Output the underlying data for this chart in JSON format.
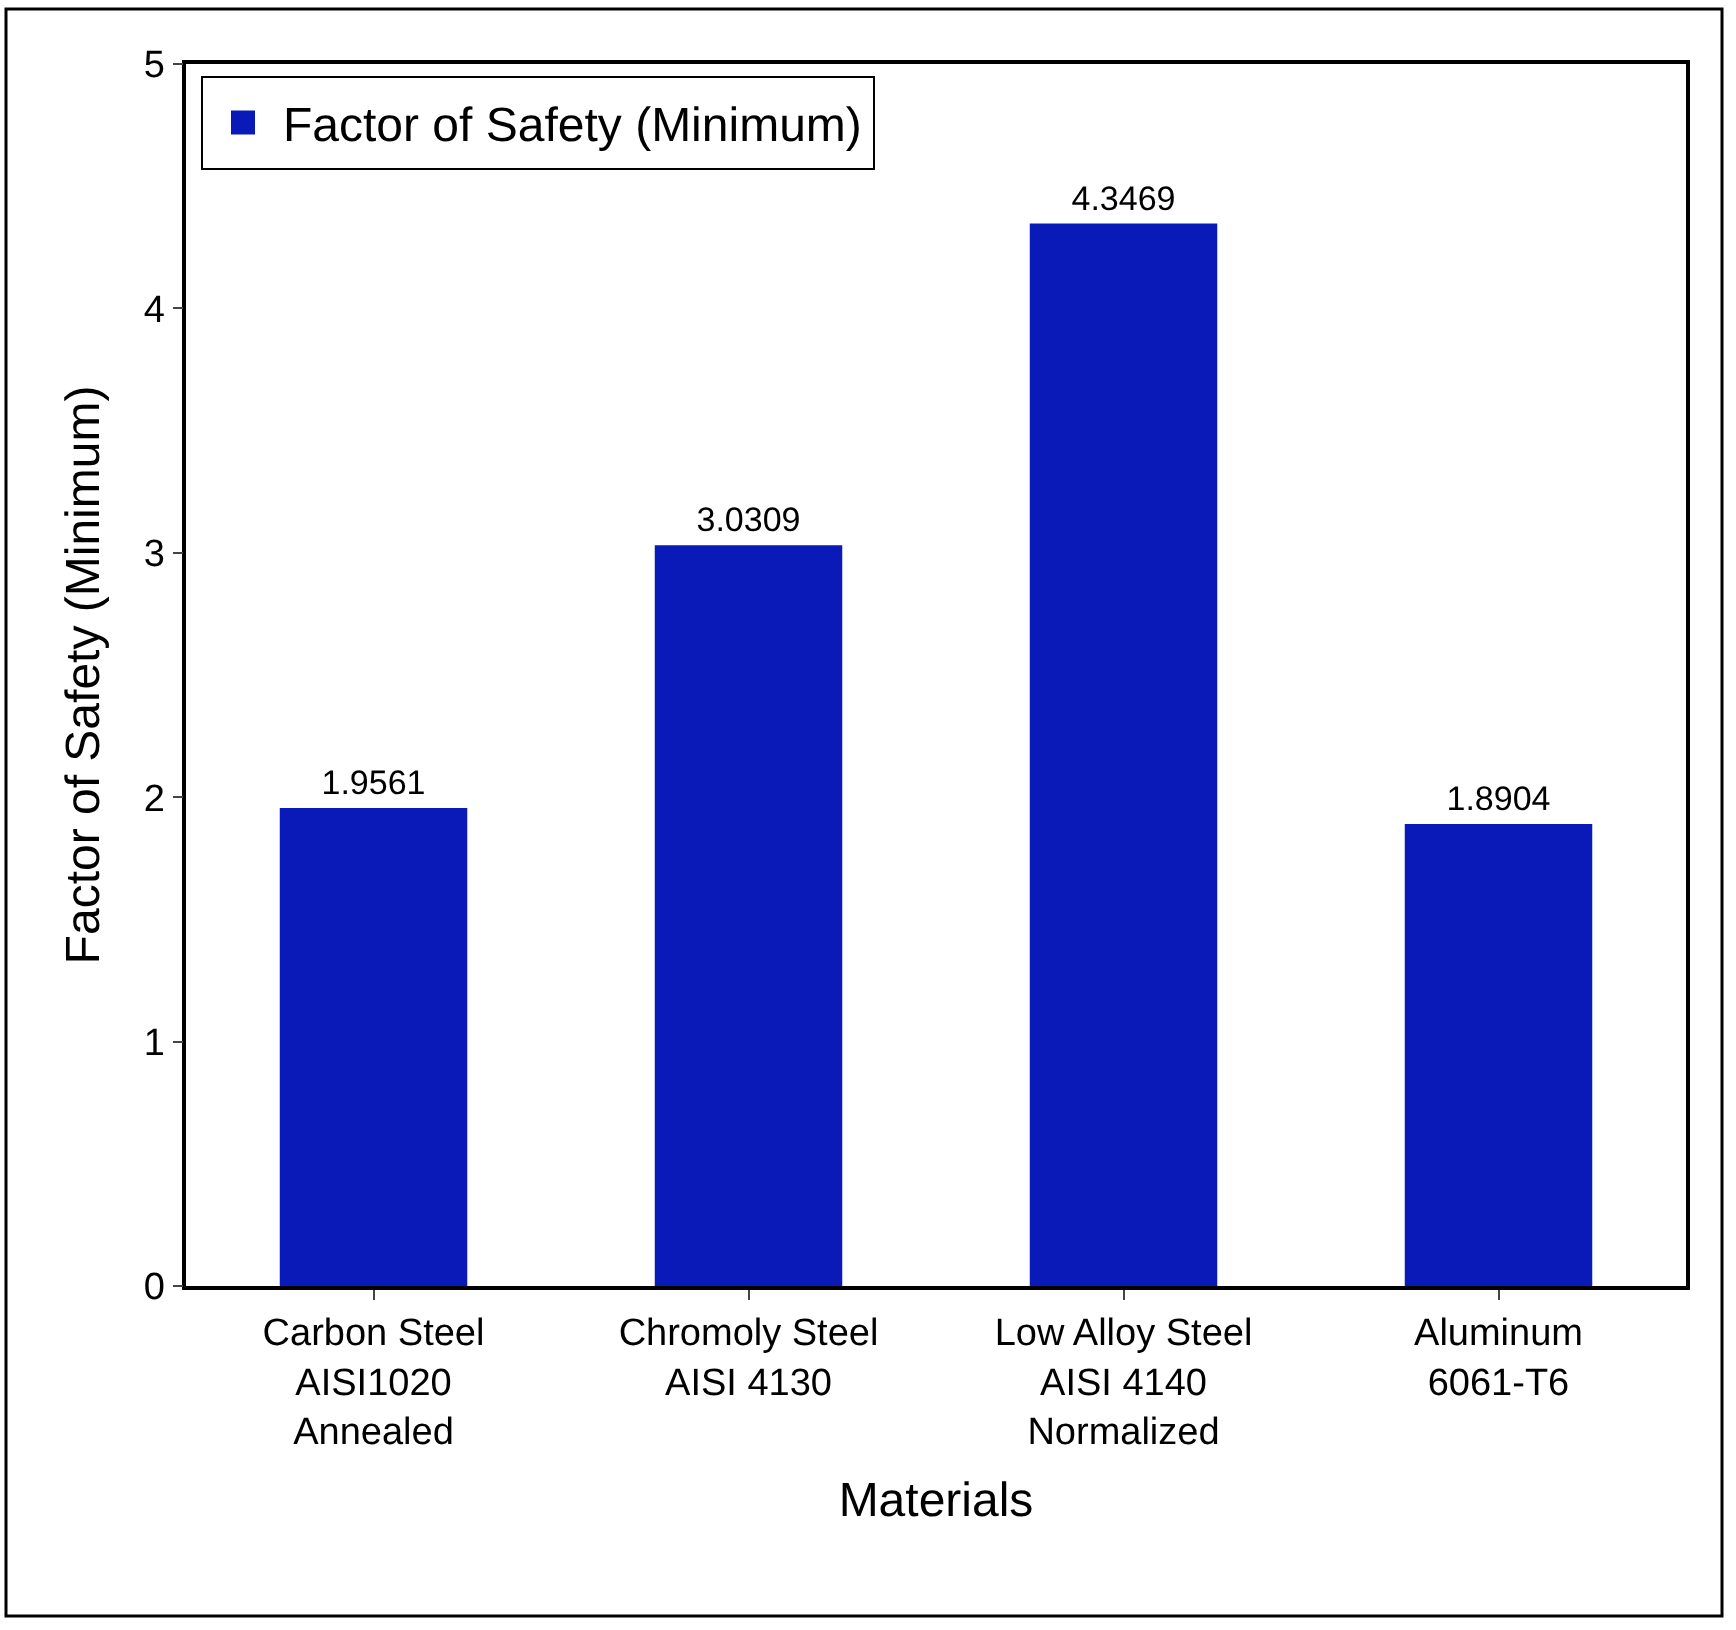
{
  "chart_data": {
    "type": "bar",
    "xlabel": "Materials",
    "ylabel": "Factor of Safety (Minimum)",
    "categories": [
      "Carbon Steel\nAISI1020\nAnnealed",
      "Chromoly Steel\nAISI 4130",
      "Low Alloy Steel\nAISI 4140\nNormalized",
      "Aluminum\n6061-T6"
    ],
    "series": [
      {
        "name": "Factor of Safety (Minimum)",
        "color": "#0a1ab8",
        "values": [
          1.9561,
          3.0309,
          4.3469,
          1.8904
        ]
      }
    ],
    "data_labels": true,
    "ylim": [
      0,
      5
    ],
    "yticks": [
      0,
      1,
      2,
      3,
      4,
      5
    ],
    "legend": "top left"
  }
}
